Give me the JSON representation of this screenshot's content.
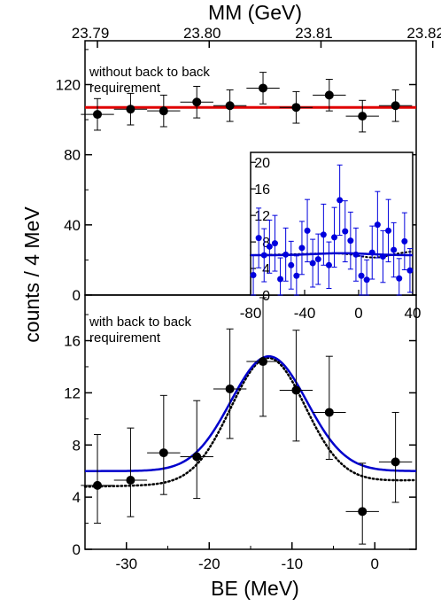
{
  "chart_data": [
    {
      "panel": "top",
      "type": "scatter",
      "annotation": [
        "without back to back",
        "requirement"
      ],
      "x_top_label": "MM (GeV)",
      "x_top_ticks": [
        23.79,
        23.8,
        23.81,
        23.82
      ],
      "ylim": [
        0,
        145
      ],
      "y_ticks": [
        0,
        40,
        80,
        120
      ],
      "points": [
        {
          "x": -33.5,
          "y": 103,
          "xerr": 2,
          "yerr": 9
        },
        {
          "x": -29.5,
          "y": 106,
          "xerr": 2,
          "yerr": 9
        },
        {
          "x": -25.5,
          "y": 105,
          "xerr": 2,
          "yerr": 9
        },
        {
          "x": -21.5,
          "y": 110,
          "xerr": 2,
          "yerr": 9
        },
        {
          "x": -17.5,
          "y": 108,
          "xerr": 2,
          "yerr": 9
        },
        {
          "x": -13.5,
          "y": 118,
          "xerr": 2,
          "yerr": 9
        },
        {
          "x": -9.5,
          "y": 107,
          "xerr": 2,
          "yerr": 9
        },
        {
          "x": -5.5,
          "y": 114,
          "xerr": 2,
          "yerr": 9
        },
        {
          "x": -1.5,
          "y": 102,
          "xerr": 2,
          "yerr": 9
        },
        {
          "x": 2.5,
          "y": 108,
          "xerr": 2,
          "yerr": 9
        }
      ],
      "fit": {
        "type": "constant",
        "value": 107,
        "color": "#e00000"
      }
    },
    {
      "panel": "bottom",
      "type": "scatter",
      "annotation": [
        "with back to back",
        "requirement"
      ],
      "xlabel": "BE (MeV)",
      "xlim": [
        -35,
        5
      ],
      "x_ticks": [
        -30,
        -20,
        -10,
        0
      ],
      "ylim": [
        0,
        19.5
      ],
      "y_ticks": [
        0,
        4,
        8,
        12,
        16
      ],
      "points": [
        {
          "x": -33.5,
          "y": 4.9,
          "xerr": 2,
          "ylo": 2.0,
          "yhi": 8.8
        },
        {
          "x": -29.5,
          "y": 5.3,
          "xerr": 2,
          "ylo": 2.5,
          "yhi": 9.3
        },
        {
          "x": -25.5,
          "y": 7.4,
          "xerr": 2,
          "ylo": 4.2,
          "yhi": 11.8
        },
        {
          "x": -21.5,
          "y": 7.1,
          "xerr": 2,
          "ylo": 3.9,
          "yhi": 11.4
        },
        {
          "x": -17.5,
          "y": 12.3,
          "xerr": 2,
          "ylo": 8.5,
          "yhi": 16.9
        },
        {
          "x": -13.5,
          "y": 14.4,
          "xerr": 2,
          "ylo": 10.2,
          "yhi": 19.3
        },
        {
          "x": -9.5,
          "y": 12.2,
          "xerr": 2,
          "ylo": 8.3,
          "yhi": 16.8
        },
        {
          "x": -5.5,
          "y": 10.5,
          "xerr": 2,
          "ylo": 6.9,
          "yhi": 14.8
        },
        {
          "x": -1.5,
          "y": 2.9,
          "xerr": 2,
          "ylo": 0.4,
          "yhi": 6.6
        },
        {
          "x": 2.5,
          "y": 6.7,
          "xerr": 2,
          "ylo": 3.6,
          "yhi": 10.5
        }
      ],
      "fit_solid": {
        "color": "#0000cc",
        "baseline": 6.0,
        "amp": 8.8,
        "center": -12.8,
        "sigma": 4.6
      },
      "fit_dotted": {
        "color": "#000000",
        "baseline_left": 4.8,
        "baseline_right": 5.3,
        "amp": 9.6,
        "center": -12.9,
        "sigma": 4.5
      }
    },
    {
      "panel": "inset",
      "type": "scatter",
      "xlim": [
        -80,
        40
      ],
      "x_ticks": [
        -80,
        -40,
        0,
        40
      ],
      "ylim": [
        0,
        21.5
      ],
      "y_ticks": [
        0,
        4,
        8,
        12,
        16,
        20
      ],
      "color": "#0000dd",
      "x": [
        -78,
        -74,
        -70,
        -66,
        -62,
        -58,
        -54,
        -50,
        -46,
        -42,
        -38,
        -34,
        -30,
        -26,
        -22,
        -18,
        -14,
        -10,
        -6,
        -2,
        2,
        6,
        10,
        14,
        18,
        22,
        26,
        30,
        34,
        38
      ],
      "y": [
        3.0,
        8.6,
        6.0,
        7.3,
        7.8,
        2.4,
        6.1,
        4.5,
        2.9,
        7.1,
        9.7,
        4.8,
        5.4,
        9.1,
        4.5,
        8.7,
        14.3,
        9.6,
        8.2,
        6.1,
        2.9,
        2.3,
        6.4,
        10.6,
        5.8,
        9.7,
        6.8,
        2.5,
        8.1,
        3.7
      ],
      "yerr": [
        3,
        4.5,
        4,
        4,
        4.2,
        3.2,
        4,
        3.6,
        3,
        4,
        4.7,
        3.6,
        3.8,
        4.6,
        3.5,
        4.5,
        5.3,
        4.6,
        4.3,
        4,
        3,
        3,
        4,
        5,
        3.9,
        4.7,
        4.1,
        3,
        4.3,
        3.3
      ],
      "fit_solid": {
        "color": "#0000cc",
        "baseline": 6.0,
        "amp": 0.3,
        "center": -12.8,
        "sigma": 20
      },
      "fit_dotted": {
        "color": "#000000",
        "baseline_left": 6.0,
        "baseline_right": 6.6,
        "dip": 0.8,
        "dip_center": 12
      }
    }
  ],
  "y_axis_label": "counts / 4 MeV"
}
